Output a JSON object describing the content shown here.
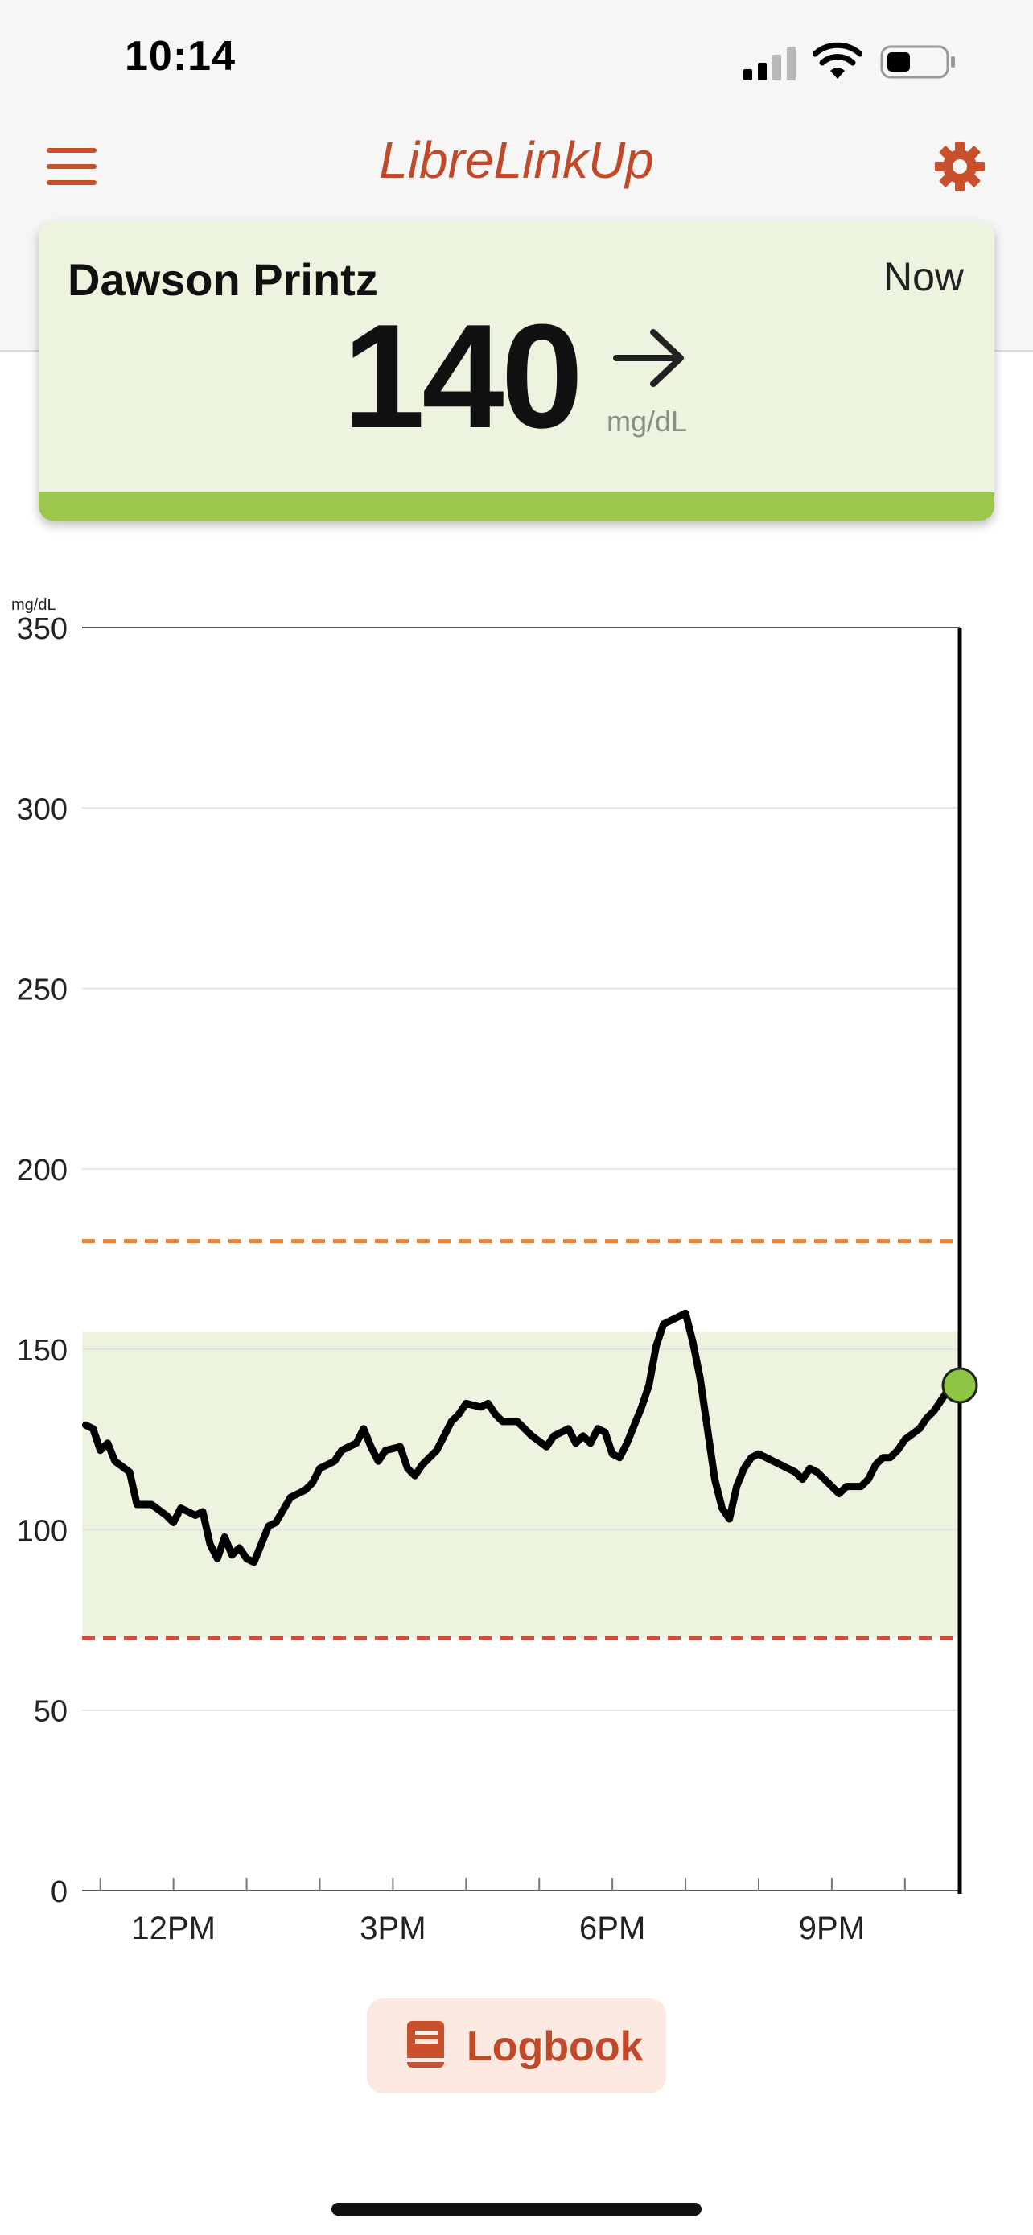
{
  "status_bar": {
    "time": "10:14"
  },
  "app": {
    "title": "LibreLinkUp"
  },
  "card": {
    "patient_name": "Dawson Printz",
    "time_label": "Now",
    "reading": "140",
    "unit": "mg/dL",
    "trend": "steady-arrow",
    "status_color": "#9bc84c"
  },
  "chart_data": {
    "type": "line",
    "ylabel": "mg/dL",
    "ylim": [
      0,
      350
    ],
    "y_ticks": [
      "350",
      "300",
      "250",
      "200",
      "150",
      "100",
      "50",
      "0"
    ],
    "x_ticks": [
      "12PM",
      "3PM",
      "6PM",
      "9PM"
    ],
    "x_range_hours": [
      10.75,
      22.75
    ],
    "target_range": [
      70,
      155
    ],
    "high_threshold": 180,
    "low_threshold": 70,
    "current_value": 140,
    "series": [
      {
        "values": [
          [
            10.8,
            129
          ],
          [
            10.9,
            128
          ],
          [
            11.0,
            122
          ],
          [
            11.1,
            124
          ],
          [
            11.2,
            119
          ],
          [
            11.4,
            116
          ],
          [
            11.5,
            107
          ],
          [
            11.7,
            107
          ],
          [
            11.9,
            104
          ],
          [
            12.0,
            102
          ],
          [
            12.1,
            106
          ],
          [
            12.3,
            104
          ],
          [
            12.4,
            105
          ],
          [
            12.5,
            96
          ],
          [
            12.6,
            92
          ],
          [
            12.7,
            98
          ],
          [
            12.8,
            93
          ],
          [
            12.9,
            95
          ],
          [
            13.0,
            92
          ],
          [
            13.1,
            91
          ],
          [
            13.3,
            101
          ],
          [
            13.4,
            102
          ],
          [
            13.6,
            109
          ],
          [
            13.8,
            111
          ],
          [
            13.9,
            113
          ],
          [
            14.0,
            117
          ],
          [
            14.2,
            119
          ],
          [
            14.3,
            122
          ],
          [
            14.5,
            124
          ],
          [
            14.6,
            128
          ],
          [
            14.7,
            123
          ],
          [
            14.8,
            119
          ],
          [
            14.9,
            122
          ],
          [
            15.1,
            123
          ],
          [
            15.2,
            117
          ],
          [
            15.3,
            115
          ],
          [
            15.4,
            118
          ],
          [
            15.6,
            122
          ],
          [
            15.7,
            126
          ],
          [
            15.8,
            130
          ],
          [
            15.9,
            132
          ],
          [
            16.0,
            135
          ],
          [
            16.2,
            134
          ],
          [
            16.3,
            135
          ],
          [
            16.4,
            132
          ],
          [
            16.5,
            130
          ],
          [
            16.7,
            130
          ],
          [
            16.8,
            128
          ],
          [
            16.9,
            126
          ],
          [
            17.1,
            123
          ],
          [
            17.2,
            126
          ],
          [
            17.4,
            128
          ],
          [
            17.5,
            124
          ],
          [
            17.6,
            126
          ],
          [
            17.7,
            124
          ],
          [
            17.8,
            128
          ],
          [
            17.9,
            127
          ],
          [
            18.0,
            121
          ],
          [
            18.1,
            120
          ],
          [
            18.2,
            124
          ],
          [
            18.4,
            134
          ],
          [
            18.5,
            140
          ],
          [
            18.6,
            151
          ],
          [
            18.7,
            157
          ],
          [
            18.8,
            158
          ],
          [
            18.9,
            159
          ],
          [
            19.0,
            160
          ],
          [
            19.1,
            152
          ],
          [
            19.2,
            142
          ],
          [
            19.3,
            128
          ],
          [
            19.4,
            114
          ],
          [
            19.5,
            106
          ],
          [
            19.6,
            103
          ],
          [
            19.7,
            112
          ],
          [
            19.8,
            117
          ],
          [
            19.9,
            120
          ],
          [
            20.0,
            121
          ],
          [
            20.1,
            120
          ],
          [
            20.2,
            119
          ],
          [
            20.3,
            118
          ],
          [
            20.5,
            116
          ],
          [
            20.6,
            114
          ],
          [
            20.7,
            117
          ],
          [
            20.8,
            116
          ],
          [
            21.0,
            112
          ],
          [
            21.1,
            110
          ],
          [
            21.2,
            112
          ],
          [
            21.4,
            112
          ],
          [
            21.5,
            114
          ],
          [
            21.6,
            118
          ],
          [
            21.7,
            120
          ],
          [
            21.8,
            120
          ],
          [
            21.9,
            122
          ],
          [
            22.0,
            125
          ],
          [
            22.2,
            128
          ],
          [
            22.3,
            131
          ],
          [
            22.4,
            133
          ],
          [
            22.5,
            136
          ],
          [
            22.6,
            139
          ],
          [
            22.75,
            140
          ]
        ]
      }
    ]
  },
  "logbook": {
    "label": "Logbook"
  }
}
